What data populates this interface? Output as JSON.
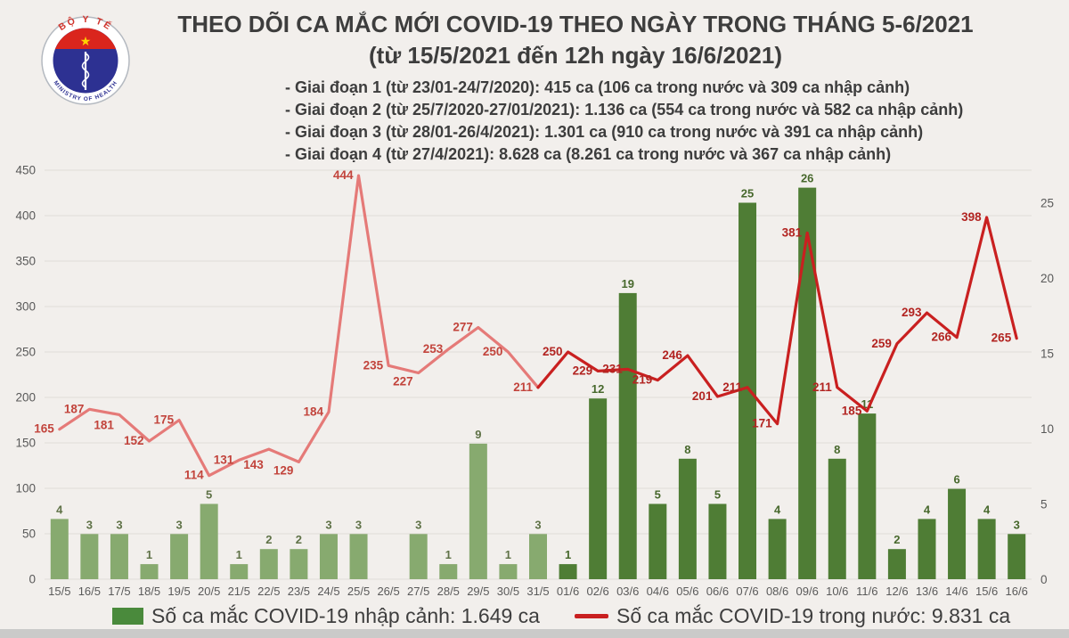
{
  "header": {
    "title_line1": "THEO DÕI CA MẮC MỚI COVID-19 THEO NGÀY TRONG THÁNG 5-6/2021",
    "title_line2": "(từ 15/5/2021 đến 12h ngày 16/6/2021)",
    "phases": [
      "- Giai đoạn 1 (từ 23/01-24/7/2020): 415 ca (106 ca trong nước và 309 ca nhập cảnh)",
      "- Giai đoạn 2 (từ 25/7/2020-27/01/2021): 1.136 ca (554 ca trong nước và 582 ca nhập cảnh)",
      "- Giai đoạn 3 (từ 28/01-26/4/2021): 1.301 ca (910 ca trong nước và 391 ca nhập cảnh)",
      "- Giai đoạn 4 (từ 27/4/2021): 8.628 ca (8.261 ca trong nước và 367 ca nhập cảnh)"
    ]
  },
  "logo": {
    "top_text": "BỘ Y TẾ",
    "bottom_text": "MINISTRY OF HEALTH",
    "star": "★"
  },
  "legend": {
    "bar_label": "Số ca mắc COVID-19 nhập cảnh: 1.649 ca",
    "line_label": "Số ca mắc COVID-19 trong nước: 9.831 ca"
  },
  "chart_data": {
    "type": "combo",
    "title": "THEO DÕI CA MẮC MỚI COVID-19 THEO NGÀY TRONG THÁNG 5-6/2021 (từ 15/5/2021 đến 12h ngày 16/6/2021)",
    "categories": [
      "15/5",
      "16/5",
      "17/5",
      "18/5",
      "19/5",
      "20/5",
      "21/5",
      "22/5",
      "23/5",
      "24/5",
      "25/5",
      "26/5",
      "27/5",
      "28/5",
      "29/5",
      "30/5",
      "31/5",
      "01/6",
      "02/6",
      "03/6",
      "04/6",
      "05/6",
      "06/6",
      "07/6",
      "08/6",
      "09/6",
      "10/6",
      "11/6",
      "12/6",
      "13/6",
      "14/6",
      "15/6",
      "16/6"
    ],
    "series": [
      {
        "name": "Số ca mắc COVID-19 nhập cảnh",
        "type": "bar",
        "axis": "right",
        "total_label": "1.649 ca",
        "values": [
          4,
          3,
          3,
          1,
          3,
          5,
          1,
          2,
          2,
          3,
          3,
          0,
          3,
          1,
          9,
          1,
          3,
          1,
          12,
          19,
          5,
          8,
          5,
          25,
          4,
          26,
          8,
          11,
          2,
          4,
          6,
          4,
          3
        ]
      },
      {
        "name": "Số ca mắc COVID-19 trong nước",
        "type": "line",
        "axis": "left",
        "total_label": "9.831 ca",
        "values": [
          165,
          187,
          181,
          152,
          175,
          114,
          131,
          143,
          129,
          184,
          444,
          235,
          227,
          253,
          277,
          250,
          211,
          250,
          229,
          231,
          219,
          246,
          201,
          211,
          171,
          381,
          211,
          185,
          259,
          293,
          266,
          398,
          265
        ]
      }
    ],
    "may_count": 17,
    "left_axis": {
      "min": 0,
      "max": 450,
      "step": 50
    },
    "right_axis": {
      "min": 0,
      "max": 25,
      "step": 5
    },
    "grid": true,
    "legend_position": "bottom",
    "line_label_dy": {
      "2": 12,
      "7": 18,
      "8": 10,
      "12": 10
    },
    "colors": {
      "bar_may": "#87aa6f",
      "bar_june": "#4f7d35",
      "bar_label_may": "#5f7247",
      "bar_label_june": "#47682c",
      "line_may": "#e57a78",
      "line_june": "#c92020",
      "line_label_may": "#c2443c",
      "line_label_june": "#b22421",
      "legend_bar_swatch": "#4a8a3c",
      "legend_line_swatch": "#c92020",
      "grid": "#e0ddd9",
      "axis_text": "#595959",
      "background": "#f2efec",
      "logo_navy": "#2d3192",
      "logo_red": "#da251d",
      "logo_star": "#ffd400"
    }
  }
}
